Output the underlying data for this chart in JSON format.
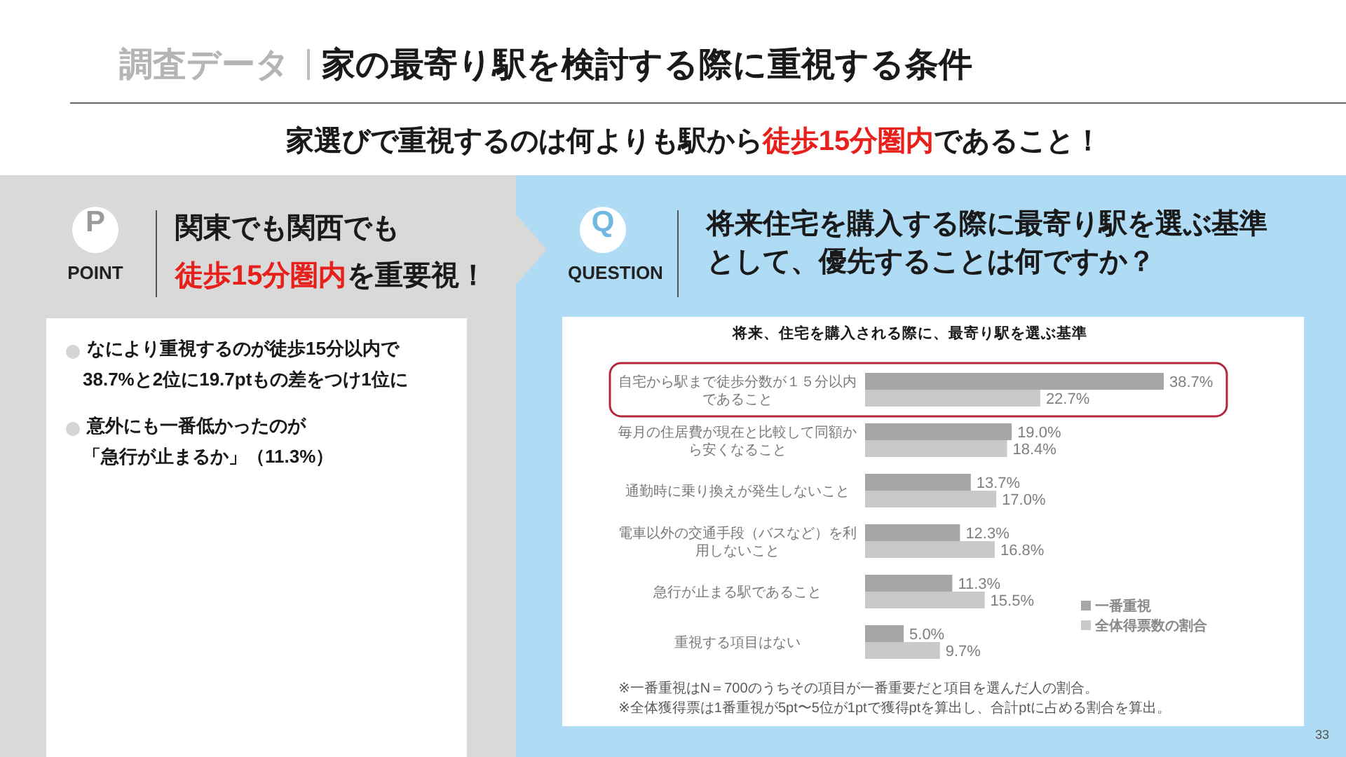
{
  "chart_data": [
    {
      "type": "other",
      "subtitle": "調査データ",
      "title": "家の最寄り駅を検討する際に重視する条件",
      "annotations": [
        "家選びで重視するのは何よりも駅から",
        "徒歩15分圏内",
        "であること！",
        "33"
      ]
    },
    {
      "type": "other",
      "annotations": [
        "P",
        "POINT",
        "関東でも関西でも",
        "徒歩15分圏内",
        "を重要視！",
        "なにより重視するのが徒歩15分以内で",
        "38.7%と2位に19.7ptもの差をつけ1位に",
        "意外にも一番低かったのが",
        "「急行が止まるか」（11.3%）"
      ]
    },
    {
      "type": "other",
      "title": "将来住宅を購入する際に最寄り駅を選ぶ基準として、優先することは何ですか？",
      "annotations": [
        "Q",
        "QUESTION"
      ]
    },
    {
      "type": "bar",
      "orientation": "horizontal",
      "title": "将来、住宅を購入される際に、最寄り駅を選ぶ基準",
      "categories": [
        "自宅から駅まで徒歩分数が１５分以内であること",
        "毎月の住居費が現在と比較して同額から安くなること",
        "通勤時に乗り換えが発生しないこと",
        "電車以外の交通手段（バスなど）を利用しないこと",
        "急行が止まる駅であること",
        "重視する項目はない"
      ],
      "series": [
        {
          "name": "一番重視",
          "color": "#a6a6a6",
          "values": [
            38.7,
            19.0,
            13.7,
            12.3,
            11.3,
            5.0
          ],
          "value_labels": [
            "38.7%",
            "19.0%",
            "13.7%",
            "12.3%",
            "11.3%",
            "5.0%"
          ]
        },
        {
          "name": "全体得票数の割合",
          "color": "#c9c9c9",
          "values": [
            22.7,
            18.4,
            17.0,
            16.8,
            15.5,
            9.7
          ],
          "value_labels": [
            "22.7%",
            "18.4%",
            "17.0%",
            "16.8%",
            "15.5%",
            "9.7%"
          ]
        }
      ],
      "legend": "bottom right",
      "annotations": [
        "※一番重視はN＝700のうちその項目が一番重要だと項目を選んだ人の割合。",
        "※全体獲得票は1番重視が5pt〜5位が1ptで獲得ptを算出し、合計ptに占める割合を算出。"
      ]
    }
  ]
}
